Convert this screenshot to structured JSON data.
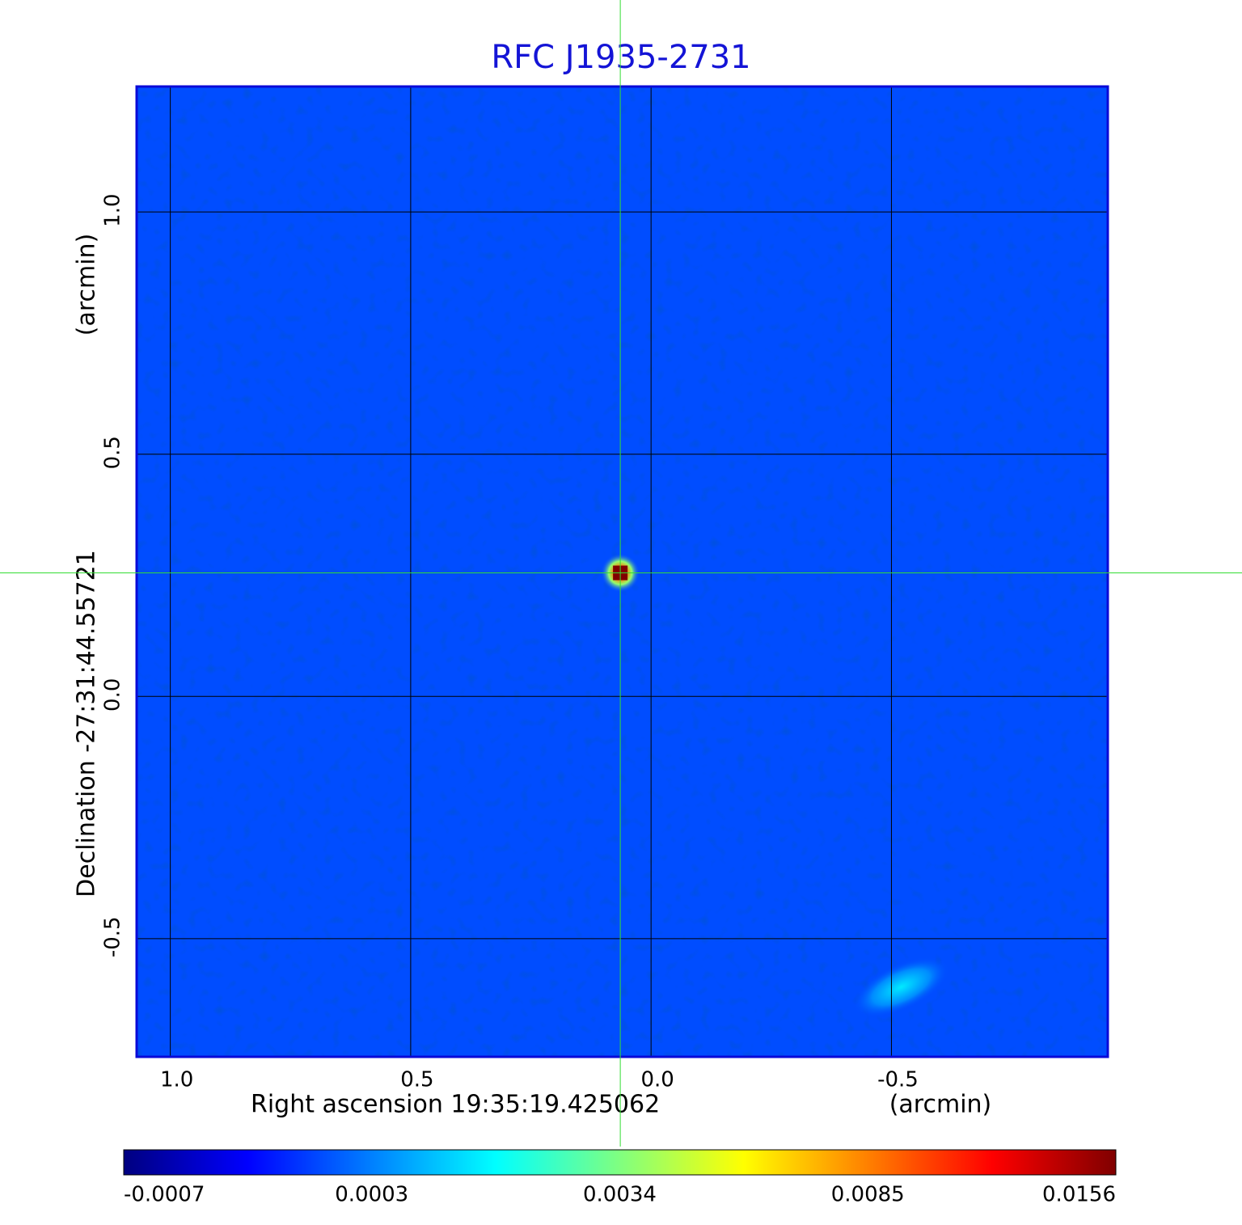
{
  "chart_data": {
    "type": "image",
    "title": "RFC J1935-2731",
    "xlabel": "Right ascension  19:35:19.425062",
    "xunit": "(arcmin)",
    "ylabel": "Declination  -27:31:44.55721",
    "yunit": "(arcmin)",
    "xlim": [
      1.07,
      -0.95
    ],
    "ylim": [
      -0.744,
      1.259
    ],
    "xticks": [
      {
        "value": 1,
        "label": "1.0"
      },
      {
        "value": 0.5,
        "label": "0.5"
      },
      {
        "value": 0,
        "label": "0.0"
      },
      {
        "value": -0.5,
        "label": "-0.5"
      }
    ],
    "yticks": [
      {
        "value": -0.5,
        "label": "-0.5"
      },
      {
        "value": 0,
        "label": "0.0"
      },
      {
        "value": 0.5,
        "label": "0.5"
      },
      {
        "value": 1,
        "label": "1.0"
      }
    ],
    "grid": true,
    "colormap": "jet",
    "colorbar_ticks": [
      -0.0007,
      0.0003,
      0.0034,
      0.0085,
      0.0156
    ],
    "background_level": 0.0001,
    "crosshair": {
      "x": 0.064,
      "y": 0.255
    },
    "features": [
      {
        "x": 0.064,
        "y": 0.255,
        "value": 0.0156
      },
      {
        "x": -0.52,
        "y": -0.6,
        "value": 0.0016
      }
    ]
  }
}
